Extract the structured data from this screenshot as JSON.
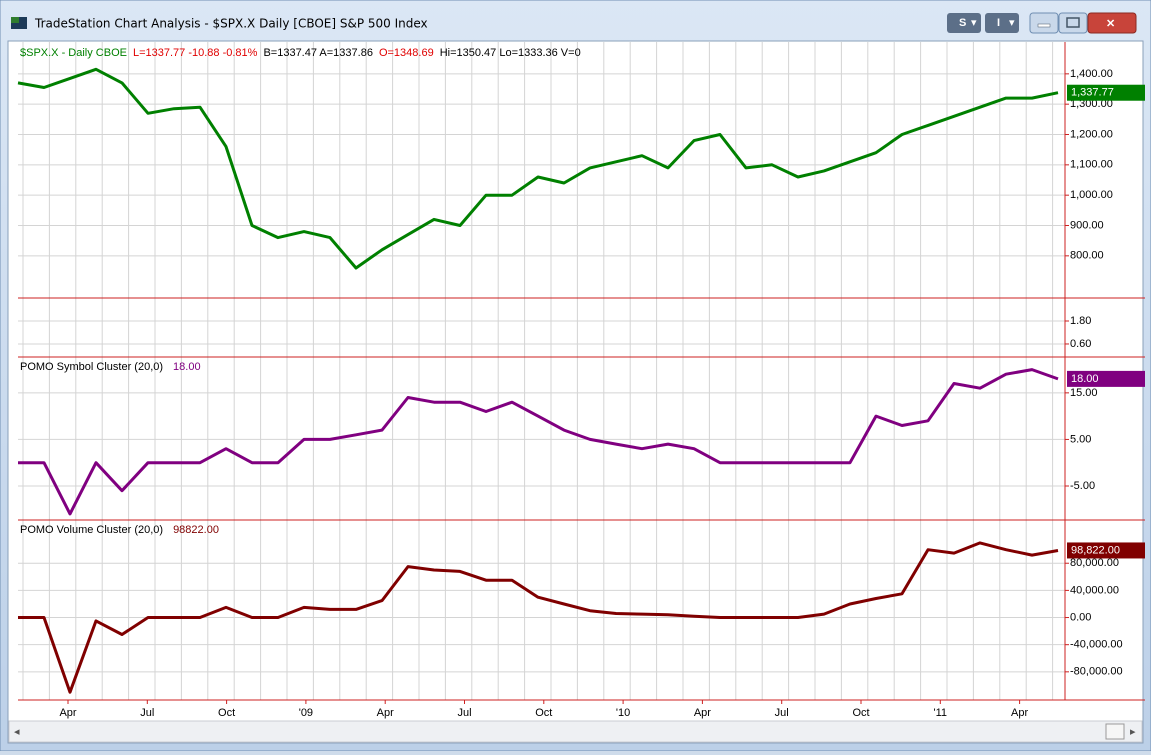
{
  "window": {
    "title": "TradeStation Chart Analysis - $SPX.X Daily [CBOE] S&P 500 Index",
    "buttons": [
      "S",
      "I"
    ]
  },
  "header": [
    {
      "text": "$SPX.X - Daily  CBOE",
      "color": "#008000"
    },
    {
      "text": "L=1337.77  -10.88  -0.81%",
      "color": "#e00000"
    },
    {
      "text": "B=1337.47  A=1337.86",
      "color": "#000000"
    },
    {
      "text": "O=1348.69",
      "color": "#e00000"
    },
    {
      "text": "Hi=1350.47  Lo=1333.36  V=0",
      "color": "#000000"
    }
  ],
  "chart_data": [
    {
      "type": "line",
      "name": "price",
      "color": "#008000",
      "ylim": [
        661,
        1505
      ],
      "yticks": [
        {
          "value": 1400,
          "label": "1,400.00"
        },
        {
          "value": 1300,
          "label": "1,300.00"
        },
        {
          "value": 1200,
          "label": "1,200.00"
        },
        {
          "value": 1100,
          "label": "1,100.00"
        },
        {
          "value": 1000,
          "label": "1,000.00"
        },
        {
          "value": 900,
          "label": "900.00"
        },
        {
          "value": 800,
          "label": "800.00"
        }
      ],
      "values": [
        1370,
        1355,
        1385,
        1415,
        1370,
        1270,
        1285,
        1290,
        1160,
        900,
        860,
        880,
        860,
        760,
        820,
        870,
        920,
        900,
        1000,
        1000,
        1060,
        1040,
        1090,
        1110,
        1130,
        1090,
        1180,
        1200,
        1090,
        1100,
        1060,
        1080,
        1110,
        1140,
        1200,
        1230,
        1260,
        1290,
        1320,
        1320,
        1337.77
      ],
      "last_label": "1,337.77"
    },
    {
      "type": "empty",
      "name": "volume",
      "ylim": [
        -0.08,
        3.0
      ],
      "yticks": [
        {
          "value": 1.8,
          "label": "1.80"
        },
        {
          "value": 0.6,
          "label": "0.60"
        }
      ]
    },
    {
      "type": "line",
      "name": "symbol-cluster",
      "color": "#800080",
      "title": "POMO Symbol Cluster (20,0)",
      "title_value": "18.00",
      "ylim": [
        -12.3,
        22.7
      ],
      "yticks": [
        {
          "value": 15,
          "label": "15.00"
        },
        {
          "value": 5,
          "label": "5.00"
        },
        {
          "value": -5,
          "label": "-5.00"
        }
      ],
      "values": [
        0,
        0,
        -11,
        0,
        -6,
        0,
        0,
        0,
        3,
        0,
        0,
        5,
        5,
        6,
        7,
        14,
        13,
        13,
        11,
        13,
        10,
        7,
        5,
        4,
        3,
        4,
        3,
        0,
        0,
        0,
        0,
        0,
        0,
        10,
        8,
        9,
        17,
        16,
        19,
        20,
        18
      ],
      "last_label": "18.00"
    },
    {
      "type": "line",
      "name": "volume-cluster",
      "color": "#800000",
      "title": "POMO Volume Cluster (20,0)",
      "title_value": "98822.00",
      "ylim": [
        -121500,
        143700
      ],
      "yticks": [
        {
          "value": 80000,
          "label": "80,000.00"
        },
        {
          "value": 40000,
          "label": "40,000.00"
        },
        {
          "value": 0,
          "label": "0.00"
        },
        {
          "value": -40000,
          "label": "-40,000.00"
        },
        {
          "value": -80000,
          "label": "-80,000.00"
        }
      ],
      "values": [
        0,
        0,
        -110000,
        -5000,
        -25000,
        0,
        0,
        0,
        15000,
        0,
        0,
        15000,
        12000,
        12000,
        25000,
        75000,
        70000,
        68000,
        55000,
        55000,
        30000,
        20000,
        10000,
        6000,
        5000,
        4000,
        2000,
        0,
        0,
        0,
        0,
        5000,
        20000,
        28000,
        35000,
        100000,
        95000,
        110000,
        100000,
        92000,
        98822
      ],
      "last_label": "98,822.00"
    }
  ],
  "xaxis": {
    "categories": [
      "Apr",
      "Jul",
      "Oct",
      "'09",
      "Apr",
      "Jul",
      "Oct",
      "'10",
      "Apr",
      "Jul",
      "Oct",
      "'11",
      "Apr"
    ]
  }
}
